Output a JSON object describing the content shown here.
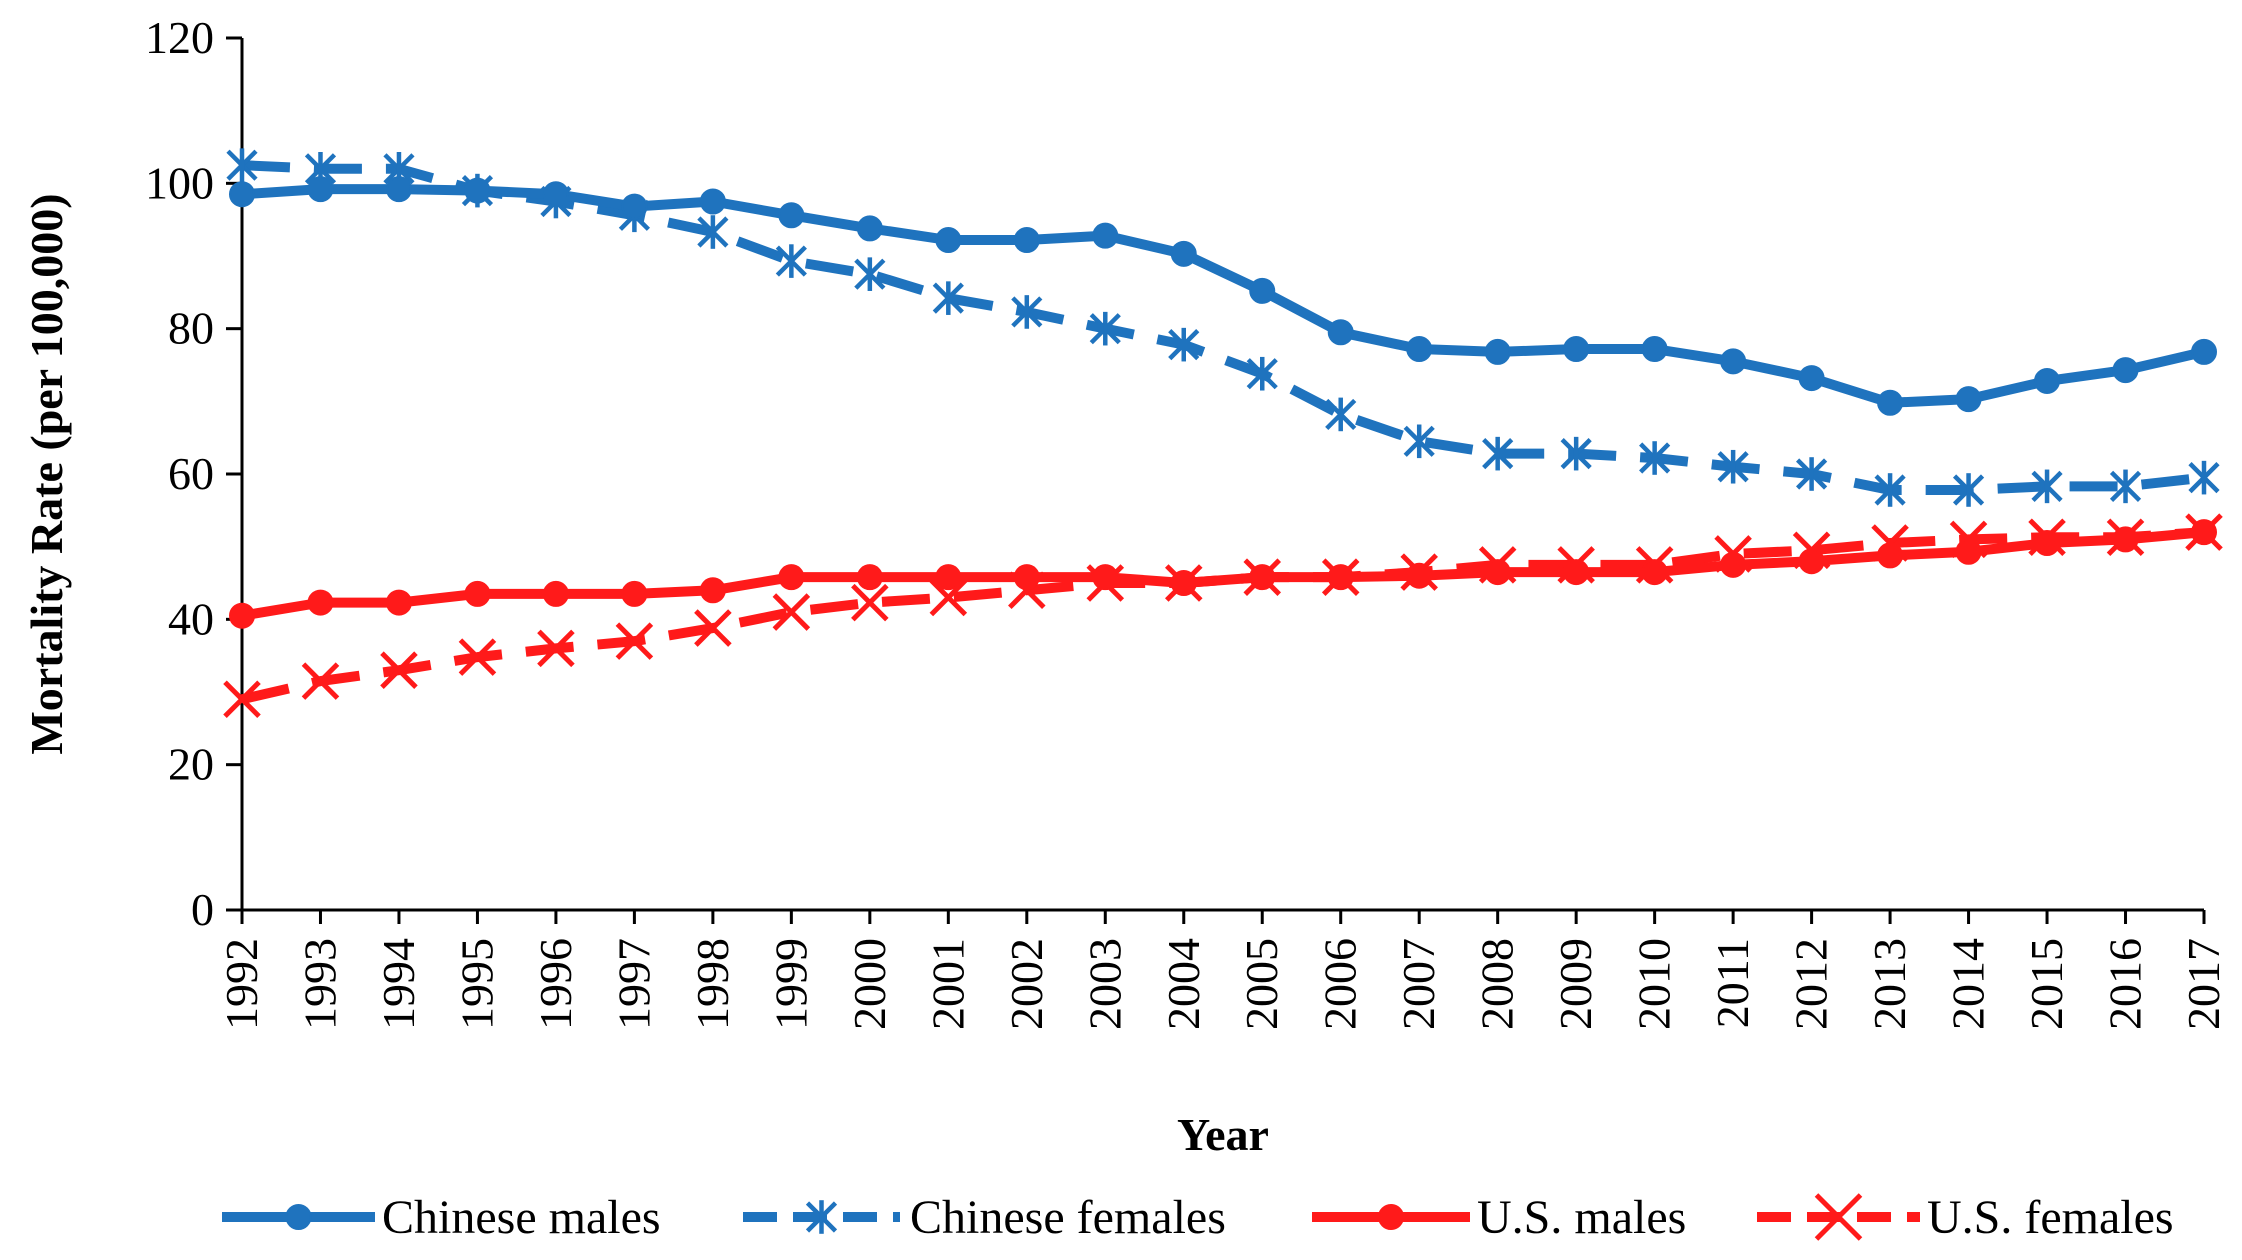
{
  "chart_data": {
    "type": "line",
    "title": "",
    "xlabel": "Year",
    "ylabel": "Mortality  Rate  (per  100,000)",
    "ylim": [
      0,
      120
    ],
    "yticks": [
      0,
      20,
      40,
      60,
      80,
      100,
      120
    ],
    "categories": [
      "1992",
      "1993",
      "1994",
      "1995",
      "1996",
      "1997",
      "1998",
      "1999",
      "2000",
      "2001",
      "2002",
      "2003",
      "2004",
      "2005",
      "2006",
      "2007",
      "2008",
      "2009",
      "2010",
      "2011",
      "2012",
      "2013",
      "2014",
      "2015",
      "2016",
      "2017"
    ],
    "grid": false,
    "legend_position": "bottom",
    "series": [
      {
        "name": "Chinese males",
        "color": "#1f73be",
        "marker": "circle",
        "dash": "solid",
        "values": [
          98.5,
          99.2,
          99.2,
          99.0,
          98.5,
          96.8,
          97.5,
          95.6,
          93.8,
          92.2,
          92.2,
          92.8,
          90.3,
          85.2,
          79.5,
          77.2,
          76.8,
          77.2,
          77.2,
          75.5,
          73.2,
          69.8,
          70.3,
          72.8,
          74.3,
          76.8
        ]
      },
      {
        "name": "Chinese females",
        "color": "#1f73be",
        "marker": "star",
        "dash": "dashed",
        "values": [
          102.5,
          102.0,
          102.0,
          99.0,
          97.5,
          95.6,
          93.3,
          89.3,
          87.5,
          84.2,
          82.3,
          80.0,
          77.8,
          73.8,
          68.2,
          64.5,
          62.8,
          62.8,
          62.2,
          61.0,
          60.0,
          57.8,
          57.8,
          58.3,
          58.3,
          59.5
        ]
      },
      {
        "name": "U.S. males",
        "color": "#ff1a1a",
        "marker": "circle",
        "dash": "solid",
        "values": [
          40.5,
          42.3,
          42.3,
          43.5,
          43.5,
          43.5,
          44.0,
          45.8,
          45.8,
          45.8,
          45.8,
          45.8,
          45.0,
          45.8,
          45.8,
          46.0,
          46.5,
          46.5,
          46.5,
          47.5,
          48.0,
          48.8,
          49.3,
          50.5,
          51.0,
          52.0
        ]
      },
      {
        "name": "U.S. females",
        "color": "#ff1a1a",
        "marker": "x",
        "dash": "dashed",
        "values": [
          29.0,
          31.5,
          33.0,
          34.8,
          36.0,
          37.0,
          38.8,
          41.0,
          42.3,
          43.0,
          44.0,
          45.0,
          45.0,
          45.8,
          45.8,
          46.5,
          47.5,
          47.5,
          47.5,
          49.0,
          49.5,
          50.5,
          51.0,
          51.3,
          51.3,
          52.0
        ]
      }
    ]
  }
}
